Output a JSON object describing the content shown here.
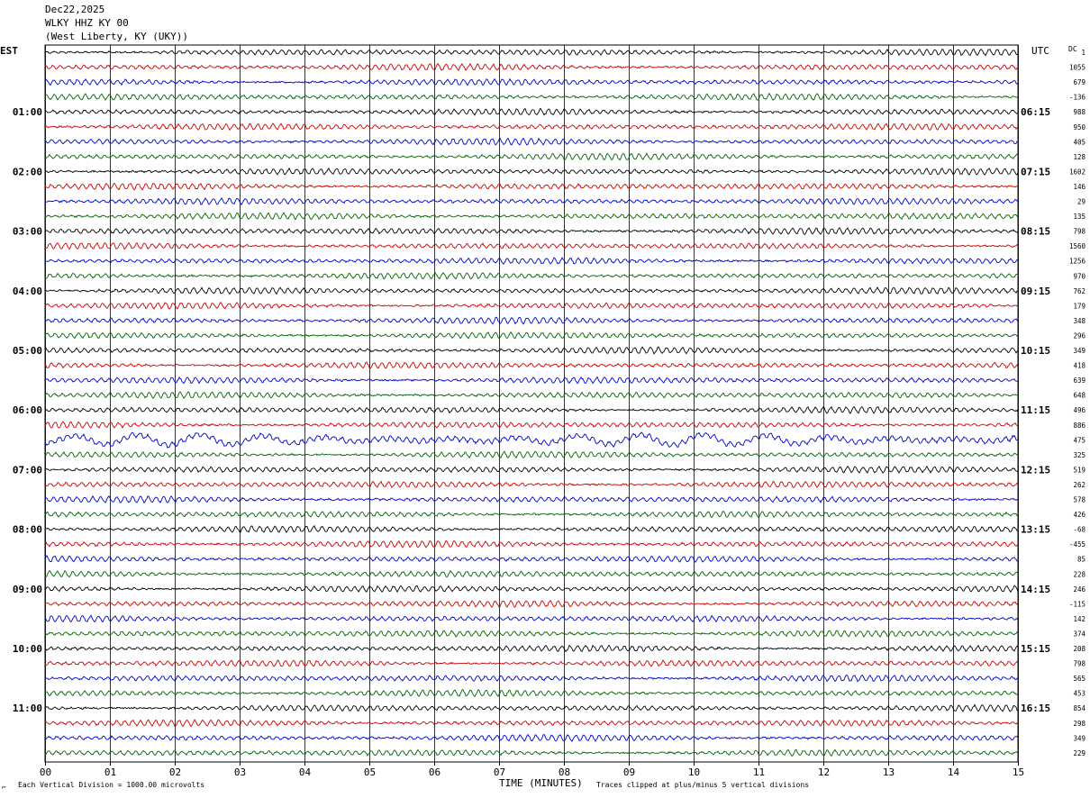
{
  "header": {
    "date": "Dec22,2025",
    "station": "WLKY HHZ KY 00",
    "location": "(West Liberty, KY (UKY))"
  },
  "left_axis_label": "EST",
  "right_axis_label": "UTC",
  "dc_label": "DC",
  "footer": {
    "scale_note": "Each Vertical Division = 1000.00 microvolts",
    "xlabel": "TIME (MINUTES)",
    "clip_note": "Traces clipped at plus/minus 5 vertical divisions"
  },
  "chart_data": {
    "type": "line",
    "title": "WLKY HHZ KY 00",
    "xlabel": "TIME (MINUTES)",
    "xlim": [
      0,
      15
    ],
    "x_ticks": [
      "00",
      "01",
      "02",
      "03",
      "04",
      "05",
      "06",
      "07",
      "08",
      "09",
      "10",
      "11",
      "12",
      "13",
      "14",
      "15"
    ],
    "trace_count": 48,
    "trace_colors": [
      "#000000",
      "#cc0000",
      "#0000cc",
      "#006400"
    ],
    "est_hour_labels": [
      "01:00",
      "02:00",
      "03:00",
      "04:00",
      "05:00",
      "06:00",
      "07:00",
      "08:00",
      "09:00",
      "10:00",
      "11:00"
    ],
    "utc_hour_labels": [
      "06:15",
      "07:15",
      "08:15",
      "09:15",
      "10:15",
      "11:15",
      "12:15",
      "13:15",
      "14:15",
      "15:15",
      "16:15"
    ],
    "hour_label_trace_indices": [
      4,
      8,
      12,
      16,
      20,
      24,
      28,
      32,
      36,
      40,
      44
    ],
    "dc_offsets": [
      "1",
      "1055",
      "679",
      "-136",
      "988",
      "950",
      "405",
      "128",
      "1602",
      "146",
      "29",
      "135",
      "798",
      "1560",
      "1256",
      "970",
      "762",
      "179",
      "348",
      "296",
      "349",
      "418",
      "639",
      "648",
      "496",
      "886",
      "475",
      "325",
      "519",
      "262",
      "578",
      "426",
      "-68",
      "-455",
      "85",
      "228",
      "246",
      "-115",
      "142",
      "374",
      "208",
      "798",
      "565",
      "453",
      "854",
      "298",
      "349",
      "229"
    ]
  }
}
